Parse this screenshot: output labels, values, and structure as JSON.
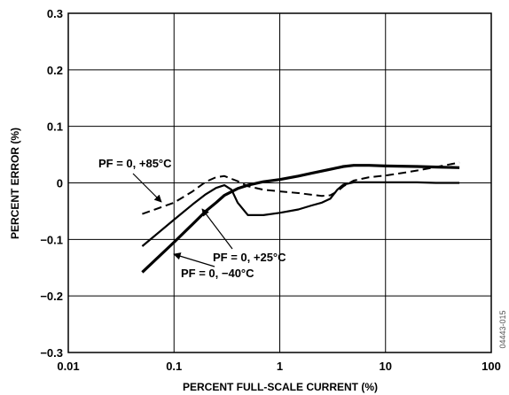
{
  "chart_data": {
    "type": "line",
    "title": "",
    "xlabel": "PERCENT FULL-SCALE CURRENT (%)",
    "ylabel": "PERCENT ERROR (%)",
    "xscale": "log",
    "xlim": [
      0.01,
      100
    ],
    "ylim": [
      -0.3,
      0.3
    ],
    "grid": true,
    "x_ticks": [
      "0.01",
      "0.1",
      "1",
      "10",
      "100"
    ],
    "y_ticks": [
      "0.3",
      "0.2",
      "0.1",
      "0",
      "−0.1",
      "−0.2",
      "−0.3"
    ],
    "series": [
      {
        "name": "PF = 0, +85°C",
        "style": "dashed",
        "x": [
          0.05,
          0.1,
          0.15,
          0.2,
          0.25,
          0.3,
          0.4,
          0.5,
          0.7,
          1,
          1.5,
          2,
          2.5,
          3,
          3.5,
          4,
          5,
          7,
          10,
          15,
          20,
          30,
          50
        ],
        "y": [
          -0.055,
          -0.035,
          -0.015,
          0.002,
          0.01,
          0.012,
          0.003,
          -0.006,
          -0.012,
          -0.015,
          -0.018,
          -0.021,
          -0.023,
          -0.022,
          -0.015,
          -0.006,
          0.004,
          0.01,
          0.013,
          0.018,
          0.022,
          0.028,
          0.036
        ]
      },
      {
        "name": "PF = 0, +25°C",
        "style": "solid",
        "x": [
          0.05,
          0.1,
          0.15,
          0.2,
          0.25,
          0.3,
          0.35,
          0.4,
          0.5,
          0.7,
          1,
          1.5,
          2,
          2.5,
          3,
          3.5,
          4,
          5,
          7,
          10,
          20,
          30,
          50
        ],
        "y": [
          -0.112,
          -0.065,
          -0.038,
          -0.02,
          -0.009,
          -0.004,
          -0.012,
          -0.035,
          -0.057,
          -0.057,
          -0.053,
          -0.047,
          -0.04,
          -0.035,
          -0.028,
          -0.012,
          -0.003,
          0.001,
          0.001,
          0.001,
          0.001,
          0.0,
          0.0
        ]
      },
      {
        "name": "PF = 0, −40°C",
        "style": "solid-bold",
        "x": [
          0.05,
          0.1,
          0.15,
          0.2,
          0.25,
          0.3,
          0.4,
          0.5,
          0.7,
          1,
          1.5,
          2,
          3,
          4,
          5,
          7,
          10,
          20,
          30,
          50
        ],
        "y": [
          -0.158,
          -0.105,
          -0.073,
          -0.05,
          -0.035,
          -0.022,
          -0.01,
          -0.004,
          0.002,
          0.006,
          0.012,
          0.017,
          0.024,
          0.029,
          0.031,
          0.031,
          0.03,
          0.029,
          0.028,
          0.027
        ]
      }
    ],
    "annotations": [
      {
        "text": "PF = 0, +85°C",
        "series": 0
      },
      {
        "text": "PF = 0, +25°C",
        "series": 1
      },
      {
        "text": "PF = 0, −40°C",
        "series": 2
      }
    ],
    "figure_id": "04443-015"
  }
}
